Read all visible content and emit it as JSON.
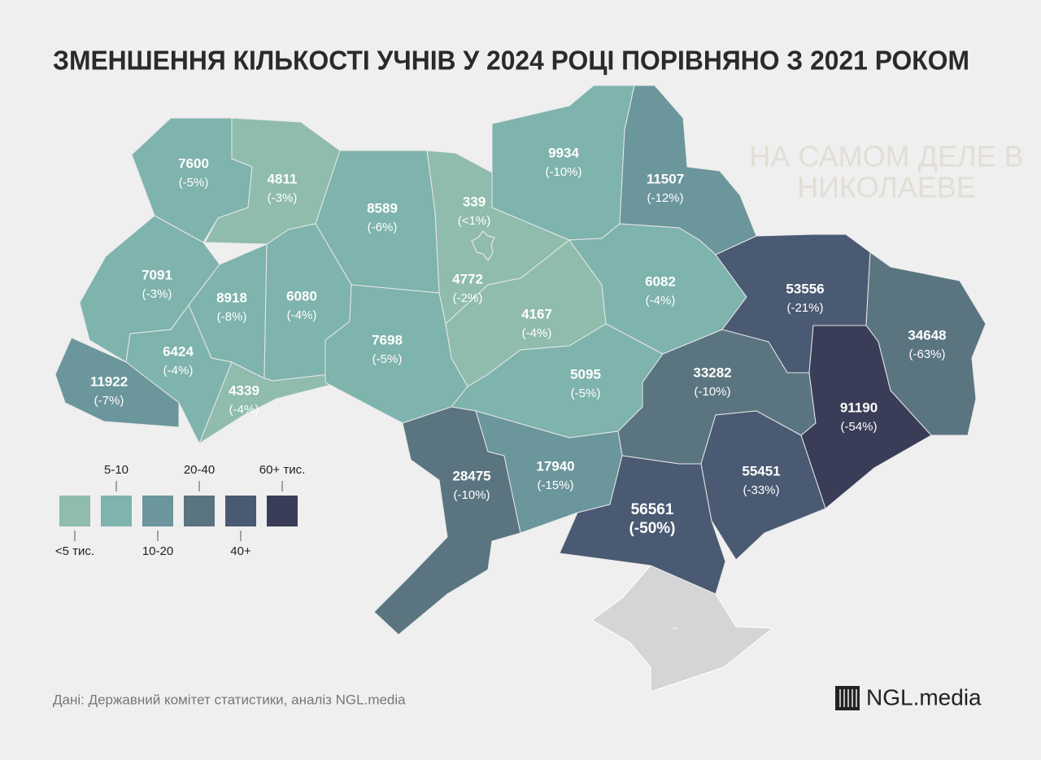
{
  "title": "ЗМЕНШЕННЯ КІЛЬКОСТІ УЧНІВ У 2024 РОЦІ ПОРІВНЯНО З 2021 РОКОМ",
  "watermark": [
    "НА САМОМ ДЕЛЕ В",
    "НИКОЛАЕВЕ"
  ],
  "regions": [
    {
      "value": 7600,
      "change": "(-5%)",
      "color": "#7fb3ad"
    },
    {
      "value": 4811,
      "change": "(-3%)",
      "color": "#8fbcad"
    },
    {
      "value": 8589,
      "change": "(-6%)",
      "color": "#7fb3ad"
    },
    {
      "value": 339,
      "change": "(<1%)",
      "color": "#8fbcad"
    },
    {
      "value": 4772,
      "change": "(-2%)",
      "color": "#8fbcad"
    },
    {
      "value": 9934,
      "change": "(-10%)",
      "color": "#7fb3ad"
    },
    {
      "value": 11507,
      "change": "(-12%)",
      "color": "#6a969c"
    },
    {
      "value": 7091,
      "change": "(-3%)",
      "color": "#7fb3ad"
    },
    {
      "value": 8918,
      "change": "(-8%)",
      "color": "#7fb3ad"
    },
    {
      "value": 6080,
      "change": "(-4%)",
      "color": "#7fb3ad"
    },
    {
      "value": 6424,
      "change": "(-4%)",
      "color": "#7fb3ad"
    },
    {
      "value": 11922,
      "change": "(-7%)",
      "color": "#6a969c"
    },
    {
      "value": 4339,
      "change": "(-4%)",
      "color": "#8fbcad"
    },
    {
      "value": 7698,
      "change": "(-5%)",
      "color": "#7fb3ad"
    },
    {
      "value": 4167,
      "change": "(-4%)",
      "color": "#8fbcad"
    },
    {
      "value": 6082,
      "change": "(-4%)",
      "color": "#7fb3ad"
    },
    {
      "value": 5095,
      "change": "(-5%)",
      "color": "#7fb3ad"
    },
    {
      "value": 53556,
      "change": "(-21%)",
      "color": "#4a5a72"
    },
    {
      "value": 34648,
      "change": "(-63%)",
      "color": "#5a7580"
    },
    {
      "value": 33282,
      "change": "(-10%)",
      "color": "#5a7580"
    },
    {
      "value": 91190,
      "change": "(-54%)",
      "color": "#3a3d58"
    },
    {
      "value": 28475,
      "change": "(-10%)",
      "color": "#5a7580"
    },
    {
      "value": 17940,
      "change": "(-15%)",
      "color": "#6a969c"
    },
    {
      "value": 56561,
      "change": "(-50%)",
      "color": "#4a5a72"
    },
    {
      "value": 55451,
      "change": "(-33%)",
      "color": "#4a5a72"
    }
  ],
  "crimea": {
    "label": "–",
    "color": "#d5d5d7"
  },
  "legend": [
    {
      "label": "<5 тис.",
      "color": "#8fbcad"
    },
    {
      "label": "5-10",
      "color": "#7fb3ad"
    },
    {
      "label": "10-20",
      "color": "#6a969c"
    },
    {
      "label": "20-40",
      "color": "#5a7580"
    },
    {
      "label": "40+",
      "color": "#4a5a72"
    },
    {
      "label": "60+ тис.",
      "color": "#3a3d58"
    }
  ],
  "source": "Дані: Державний комітет статистики, аналіз NGL.media",
  "logo": "NGL.media"
}
